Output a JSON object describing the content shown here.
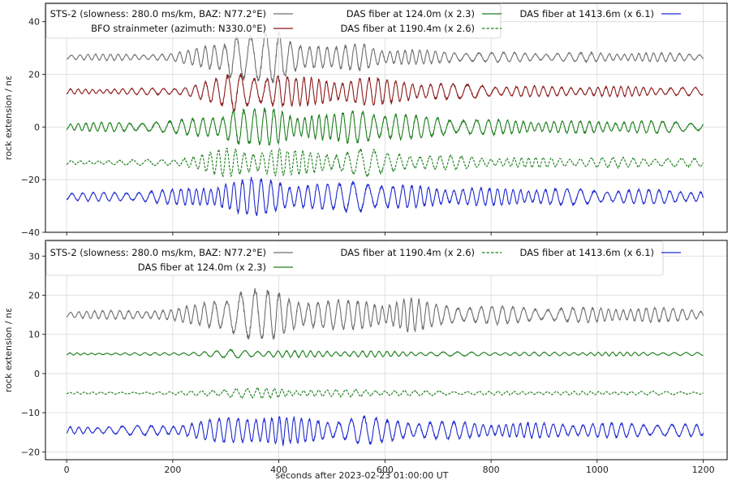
{
  "chart_data": [
    {
      "type": "line",
      "panel": "top",
      "xlim": [
        -40,
        1245
      ],
      "ylim": [
        -40,
        47
      ],
      "xticks": [
        0,
        200,
        400,
        600,
        800,
        1000,
        1200
      ],
      "yticks": [
        -40,
        -20,
        0,
        20,
        40
      ],
      "xtick_labels": [
        "0",
        "200",
        "400",
        "600",
        "800",
        "1000",
        "1200"
      ],
      "ytick_labels": [
        "−40",
        "−20",
        "0",
        "20",
        "40"
      ],
      "ylabel": "rock extension / nε",
      "xlabel": "",
      "grid": true,
      "legend_placement": "upper-left",
      "series": [
        {
          "name": "STS-2 (slowness: 280.0 ms/km, BAZ: N77.2$^\\circ$E)",
          "label": "STS-2 (slowness: 280.0 ms/km, BAZ: N77.2°E)",
          "color": "#6e6e6e",
          "style": "solid",
          "offset": 26.5,
          "x": [
            0,
            100,
            200,
            250,
            300,
            310,
            350,
            400,
            420,
            500,
            560,
            600,
            700,
            800,
            900,
            1000,
            1100,
            1200
          ],
          "amplitude": [
            1.2,
            1.3,
            1.5,
            4,
            8,
            12,
            9,
            11,
            8,
            4,
            6,
            3.5,
            2.5,
            2,
            1.8,
            1.8,
            1.8,
            1.5
          ]
        },
        {
          "name": "BFO strainmeter (azimuth: N330.0°E)",
          "label": "BFO strainmeter (azimuth: N330.0°E)",
          "color": "#8b1a1a",
          "style": "solid",
          "offset": 13.5,
          "x": [
            0,
            100,
            200,
            250,
            300,
            310,
            350,
            400,
            420,
            500,
            560,
            600,
            700,
            800,
            900,
            1000,
            1100,
            1200
          ],
          "amplitude": [
            1.0,
            1.2,
            1.4,
            3.5,
            6,
            8,
            7,
            7.5,
            6,
            5,
            6,
            5,
            3.5,
            2.5,
            2,
            2,
            2,
            1.5
          ]
        },
        {
          "name": "DAS fiber at 124.0m (x 2.3)",
          "label": "DAS fiber at 124.0m (x 2.3)",
          "color": "#1e7f1e",
          "style": "solid",
          "offset": 0,
          "x": [
            0,
            100,
            200,
            250,
            300,
            310,
            350,
            400,
            420,
            500,
            560,
            600,
            700,
            800,
            900,
            1000,
            1100,
            1200
          ],
          "amplitude": [
            1.5,
            2,
            2.5,
            4,
            6,
            8,
            7,
            8,
            6,
            5,
            8,
            6,
            4,
            3,
            2.5,
            2.5,
            2.5,
            2
          ]
        },
        {
          "name": "DAS fiber at 1190.4m (x 2.6)",
          "label": "DAS fiber at 1190.4m (x 2.6)",
          "color": "#1e7f1e",
          "style": "dashed",
          "offset": -13.5,
          "x": [
            0,
            100,
            200,
            250,
            300,
            310,
            350,
            400,
            420,
            500,
            560,
            600,
            700,
            800,
            900,
            1000,
            1100,
            1200
          ],
          "amplitude": [
            0.8,
            1,
            1.5,
            3,
            6,
            6,
            5,
            6,
            5,
            4,
            6,
            4,
            3,
            2,
            2,
            2,
            2,
            1.5
          ]
        },
        {
          "name": "DAS fiber at 1413.6m (x 6.1)",
          "label": "DAS fiber at 1413.6m (x 6.1)",
          "color": "#1f2ad0",
          "style": "solid",
          "offset": -26.5,
          "x": [
            0,
            100,
            200,
            250,
            300,
            310,
            350,
            400,
            420,
            500,
            560,
            600,
            700,
            800,
            900,
            1000,
            1100,
            1200
          ],
          "amplitude": [
            1.5,
            2,
            3,
            4,
            6,
            6,
            8,
            7,
            6,
            5,
            8,
            5,
            4,
            3.5,
            3.5,
            3,
            3,
            2.5
          ]
        }
      ]
    },
    {
      "type": "line",
      "panel": "bottom",
      "xlim": [
        -40,
        1245
      ],
      "ylim": [
        -22,
        34
      ],
      "xticks": [
        0,
        200,
        400,
        600,
        800,
        1000,
        1200
      ],
      "yticks": [
        -20,
        -10,
        0,
        10,
        20,
        30
      ],
      "xtick_labels": [
        "0",
        "200",
        "400",
        "600",
        "800",
        "1000",
        "1200"
      ],
      "ytick_labels": [
        "−20",
        "−10",
        "0",
        "10",
        "20",
        "30"
      ],
      "ylabel": "rock extension / nε",
      "xlabel": "seconds after 2023-02-23 01:00:00 UT",
      "grid": true,
      "legend_placement": "upper-left",
      "series": [
        {
          "name": "STS-2 (slowness: 280.0 ms/km, BAZ: N77.2°E)",
          "label": "STS-2 (slowness: 280.0 ms/km, BAZ: N77.2°E)",
          "color": "#6e6e6e",
          "style": "solid",
          "offset": 15,
          "x": [
            0,
            100,
            200,
            250,
            300,
            310,
            350,
            400,
            420,
            500,
            560,
            600,
            640,
            700,
            800,
            900,
            1000,
            1100,
            1200
          ],
          "amplitude": [
            1,
            1.2,
            1.5,
            3,
            6,
            7,
            7,
            6.5,
            5,
            4,
            4,
            3.5,
            5,
            3,
            2.5,
            2,
            2,
            2,
            1.5
          ]
        },
        {
          "name": "DAS fiber at 124.0m (x 2.3)",
          "label": "DAS fiber at 124.0m (x 2.3)",
          "color": "#1e7f1e",
          "style": "solid",
          "offset": 5,
          "x": [
            0,
            100,
            200,
            250,
            300,
            310,
            350,
            400,
            420,
            500,
            560,
            600,
            700,
            800,
            900,
            1000,
            1100,
            1200
          ],
          "amplitude": [
            0.3,
            0.3,
            0.4,
            0.6,
            1,
            1.2,
            1,
            1,
            0.9,
            0.8,
            0.9,
            0.7,
            0.6,
            0.5,
            0.5,
            0.5,
            0.5,
            0.4
          ]
        },
        {
          "name": "DAS fiber at 1190.4m (x 2.6)",
          "label": "DAS fiber at 1190.4m (x 2.6)",
          "color": "#1e7f1e",
          "style": "dashed",
          "offset": -5,
          "x": [
            0,
            100,
            200,
            250,
            300,
            310,
            350,
            400,
            420,
            500,
            560,
            600,
            700,
            800,
            900,
            1000,
            1100,
            1200
          ],
          "amplitude": [
            0.3,
            0.3,
            0.4,
            0.7,
            1.2,
            1.4,
            1.3,
            1.3,
            1,
            0.9,
            1,
            0.8,
            0.6,
            0.5,
            0.5,
            0.5,
            0.5,
            0.4
          ]
        },
        {
          "name": "DAS fiber at 1413.6m (x 6.1)",
          "label": "DAS fiber at 1413.6m (x 6.1)",
          "color": "#1f2ad0",
          "style": "solid",
          "offset": -14.5,
          "x": [
            0,
            100,
            200,
            250,
            300,
            310,
            350,
            400,
            420,
            500,
            560,
            600,
            700,
            800,
            900,
            1000,
            1100,
            1200
          ],
          "amplitude": [
            1,
            1.2,
            1.5,
            2.5,
            3.5,
            3.5,
            4.5,
            4,
            3.5,
            3,
            4,
            3,
            2.5,
            2,
            2,
            2,
            2,
            1.5
          ]
        }
      ]
    }
  ]
}
